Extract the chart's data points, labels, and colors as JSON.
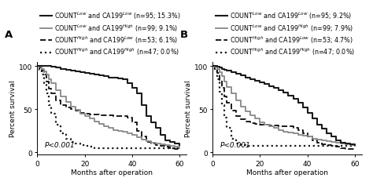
{
  "panel_A": {
    "label": "A",
    "curves": [
      {
        "name": "COUNT$^{Low}$ and CA199$^{Low}$",
        "n": 95,
        "pct": "15.3%",
        "color": "#1a1a1a",
        "linestyle": "solid",
        "linewidth": 1.5,
        "x": [
          0,
          1,
          2,
          3,
          4,
          5,
          6,
          8,
          10,
          12,
          14,
          16,
          18,
          20,
          22,
          24,
          26,
          28,
          30,
          32,
          34,
          36,
          38,
          40,
          42,
          44,
          46,
          48,
          50,
          52,
          54,
          56,
          58,
          60
        ],
        "y": [
          100,
          100,
          100,
          100,
          100,
          100,
          99,
          98,
          97,
          96,
          95,
          94,
          93,
          92,
          91,
          90,
          89,
          88,
          87,
          87,
          86,
          85,
          80,
          75,
          68,
          55,
          42,
          35,
          28,
          20,
          14,
          12,
          10,
          8
        ]
      },
      {
        "name": "COUNT$^{Low}$ and CA199$^{High}$",
        "n": 99,
        "pct": "9.1%",
        "color": "#888888",
        "linestyle": "solid",
        "linewidth": 1.3,
        "x": [
          0,
          1,
          2,
          3,
          4,
          5,
          6,
          8,
          10,
          12,
          14,
          16,
          18,
          20,
          22,
          24,
          26,
          28,
          30,
          32,
          34,
          36,
          38,
          40,
          42,
          44,
          46,
          48,
          50,
          52,
          54,
          56,
          58,
          60
        ],
        "y": [
          100,
          99,
          97,
          94,
          90,
          85,
          80,
          72,
          65,
          58,
          53,
          49,
          45,
          42,
          39,
          36,
          33,
          30,
          28,
          26,
          25,
          24,
          22,
          20,
          17,
          15,
          13,
          11,
          10,
          9,
          8,
          7,
          6,
          5
        ]
      },
      {
        "name": "COUNT$^{High}$ and CA199$^{Low}$",
        "n": 53,
        "pct": "6.1%",
        "color": "#1a1a1a",
        "linestyle": "dashed",
        "linewidth": 1.4,
        "x": [
          0,
          1,
          2,
          3,
          4,
          5,
          6,
          8,
          10,
          12,
          14,
          16,
          18,
          20,
          22,
          24,
          26,
          28,
          30,
          32,
          34,
          36,
          38,
          40,
          42,
          44,
          46,
          48,
          50,
          52,
          54,
          56,
          58,
          60
        ],
        "y": [
          100,
          98,
          95,
          90,
          82,
          74,
          68,
          60,
          55,
          52,
          50,
          48,
          46,
          45,
          44,
          44,
          43,
          43,
          43,
          42,
          42,
          42,
          40,
          35,
          25,
          18,
          12,
          10,
          8,
          7,
          6,
          5,
          4,
          3
        ]
      },
      {
        "name": "COUNT$^{High}$ and CA199$^{High}$",
        "n": 47,
        "pct": "0.0%",
        "color": "#1a1a1a",
        "linestyle": "dotted",
        "linewidth": 1.6,
        "x": [
          0,
          1,
          2,
          3,
          4,
          5,
          6,
          8,
          10,
          12,
          14,
          16,
          18,
          20,
          22,
          24,
          26,
          28,
          30,
          32,
          34,
          36,
          38,
          40,
          42,
          44,
          46,
          48,
          50,
          52,
          54,
          56,
          58,
          60
        ],
        "y": [
          100,
          96,
          90,
          80,
          68,
          55,
          45,
          32,
          22,
          16,
          12,
          10,
          8,
          7,
          6,
          5,
          5,
          5,
          5,
          5,
          5,
          5,
          5,
          5,
          5,
          5,
          5,
          5,
          5,
          5,
          5,
          5,
          5,
          5
        ]
      }
    ],
    "pvalue": "P<0.001",
    "xlabel": "Months after operation",
    "ylabel": "Percent survival",
    "xlim": [
      0,
      63
    ],
    "ylim": [
      -3,
      105
    ],
    "xticks": [
      0,
      20,
      40,
      60
    ],
    "yticks": [
      0,
      50,
      100
    ]
  },
  "panel_B": {
    "label": "B",
    "curves": [
      {
        "name": "COUNT$^{Low}$ and CA199$^{Low}$",
        "n": 95,
        "pct": "9.2%",
        "color": "#1a1a1a",
        "linestyle": "solid",
        "linewidth": 1.5,
        "x": [
          0,
          1,
          2,
          3,
          4,
          5,
          6,
          8,
          10,
          12,
          14,
          16,
          18,
          20,
          22,
          24,
          26,
          28,
          30,
          32,
          34,
          36,
          38,
          40,
          42,
          44,
          46,
          48,
          50,
          52,
          54,
          56,
          58,
          60
        ],
        "y": [
          100,
          100,
          99,
          98,
          97,
          96,
          95,
          93,
          91,
          89,
          87,
          85,
          83,
          81,
          79,
          77,
          75,
          72,
          69,
          66,
          62,
          57,
          52,
          46,
          39,
          32,
          27,
          22,
          18,
          14,
          11,
          10,
          9,
          8
        ]
      },
      {
        "name": "COUNT$^{Low}$ and CA199$^{High}$",
        "n": 99,
        "pct": "7.9%",
        "color": "#888888",
        "linestyle": "solid",
        "linewidth": 1.3,
        "x": [
          0,
          1,
          2,
          3,
          4,
          5,
          6,
          8,
          10,
          12,
          14,
          16,
          18,
          20,
          22,
          24,
          26,
          28,
          30,
          32,
          34,
          36,
          38,
          40,
          42,
          44,
          46,
          48,
          50,
          52,
          54,
          56,
          58,
          60
        ],
        "y": [
          100,
          99,
          97,
          93,
          88,
          82,
          76,
          68,
          60,
          53,
          47,
          43,
          39,
          35,
          32,
          30,
          28,
          26,
          24,
          23,
          22,
          20,
          19,
          18,
          16,
          15,
          14,
          13,
          12,
          11,
          10,
          9,
          8,
          7
        ]
      },
      {
        "name": "COUNT$^{High}$ and CA199$^{Low}$",
        "n": 53,
        "pct": "4.7%",
        "color": "#1a1a1a",
        "linestyle": "dashed",
        "linewidth": 1.4,
        "x": [
          0,
          1,
          2,
          3,
          4,
          5,
          6,
          8,
          10,
          12,
          14,
          16,
          18,
          20,
          22,
          24,
          26,
          28,
          30,
          32,
          34,
          36,
          38,
          40,
          42,
          44,
          46,
          48,
          50,
          52,
          54,
          56,
          58,
          60
        ],
        "y": [
          100,
          97,
          92,
          84,
          75,
          65,
          57,
          48,
          42,
          38,
          36,
          34,
          33,
          32,
          32,
          31,
          31,
          30,
          30,
          30,
          28,
          26,
          22,
          18,
          14,
          11,
          9,
          8,
          7,
          6,
          5,
          4,
          4,
          3
        ]
      },
      {
        "name": "COUNT$^{High}$ and CA199$^{High}$",
        "n": 47,
        "pct": "0.0%",
        "color": "#1a1a1a",
        "linestyle": "dotted",
        "linewidth": 1.6,
        "x": [
          0,
          1,
          2,
          3,
          4,
          5,
          6,
          8,
          10,
          12,
          14,
          16,
          18,
          20,
          22,
          24,
          26,
          28,
          30,
          32,
          34,
          36,
          38,
          40,
          42,
          44,
          46,
          48,
          50,
          52,
          54,
          56,
          58,
          60
        ],
        "y": [
          100,
          94,
          85,
          70,
          55,
          40,
          28,
          16,
          10,
          8,
          7,
          7,
          7,
          7,
          7,
          7,
          7,
          7,
          7,
          7,
          7,
          7,
          7,
          7,
          7,
          7,
          7,
          7,
          7,
          7,
          7,
          7,
          7,
          7
        ]
      }
    ],
    "pvalue": "P<0.001",
    "xlabel": "Months after operation",
    "ylabel": "Percent survival",
    "xlim": [
      0,
      63
    ],
    "ylim": [
      -3,
      105
    ],
    "xticks": [
      0,
      20,
      40,
      60
    ],
    "yticks": [
      0,
      50,
      100
    ]
  },
  "background_color": "#ffffff",
  "font_size": 6.5,
  "legend_fontsize": 5.8
}
